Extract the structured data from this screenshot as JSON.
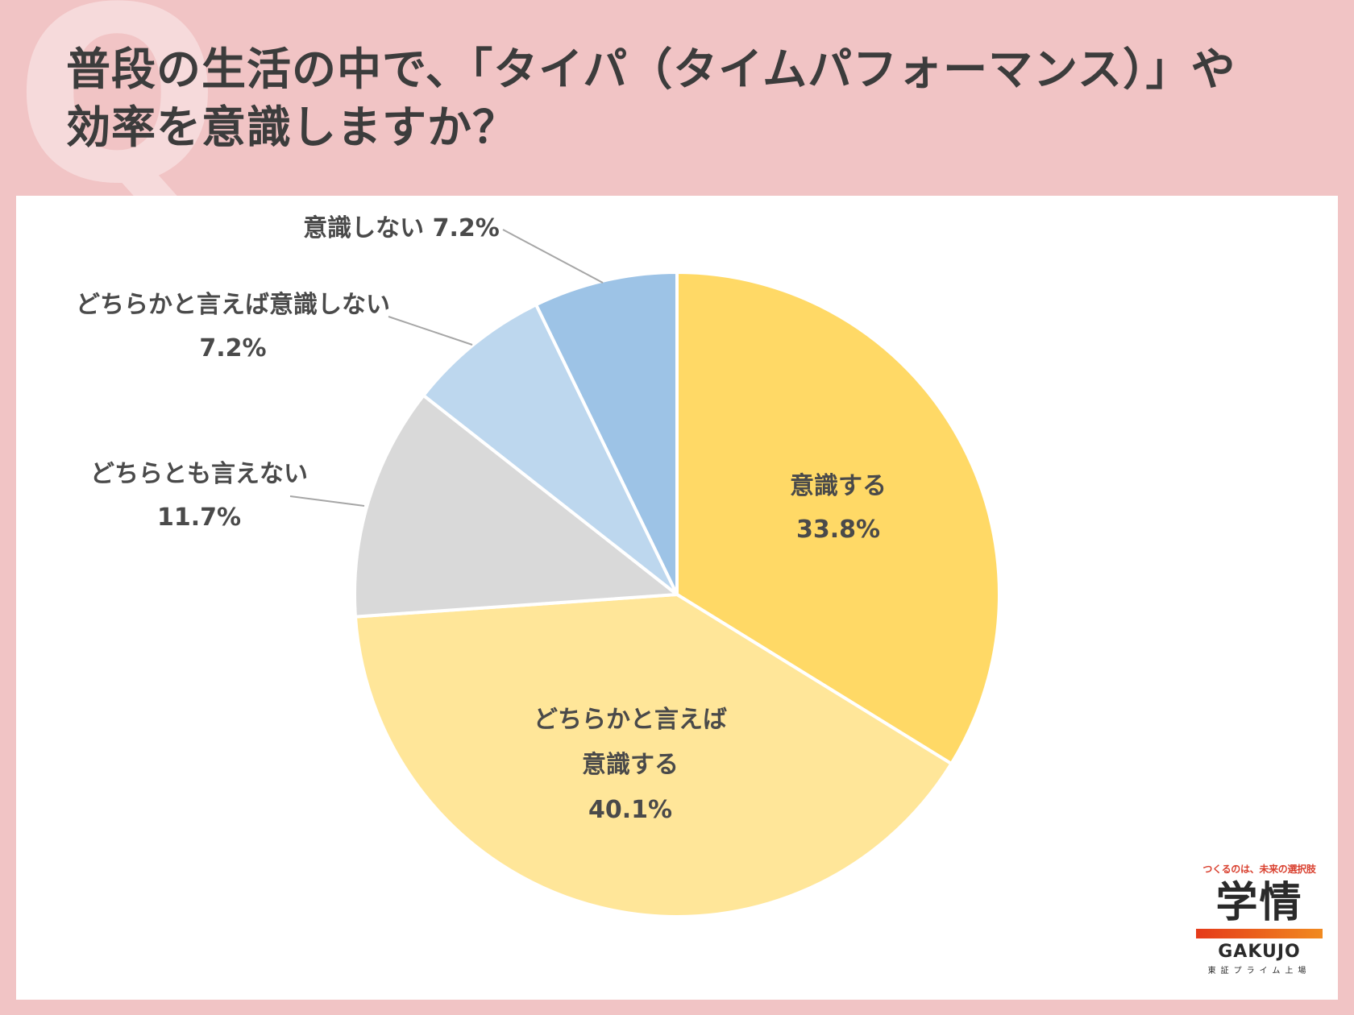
{
  "title_lines": [
    "普段の生活の中で、「タイパ（タイムパフォーマンス）」や",
    "効率を意識しますか？"
  ],
  "bg_letter": "Q",
  "chart_data": {
    "type": "pie",
    "start_angle_deg": 0,
    "direction": "clockwise",
    "slices": [
      {
        "label_lines": [
          "意識する"
        ],
        "value": 33.8,
        "value_label": "33.8%",
        "color": "#ffd966",
        "label_position": "inside"
      },
      {
        "label_lines": [
          "どちらかと言えば",
          "意識する"
        ],
        "value": 40.1,
        "value_label": "40.1%",
        "color": "#ffe699",
        "label_position": "inside"
      },
      {
        "label_lines": [
          "どちらとも言えない"
        ],
        "value": 11.7,
        "value_label": "11.7%",
        "color": "#d9d9d9",
        "label_position": "outside"
      },
      {
        "label_lines": [
          "どちらかと言えば意識しない"
        ],
        "value": 7.2,
        "value_label": "7.2%",
        "color": "#bdd7ee",
        "label_position": "outside"
      },
      {
        "label_lines": [
          "意識しない"
        ],
        "value": 7.2,
        "value_label": "7.2%",
        "color": "#9dc3e6",
        "label_position": "outside-inline"
      }
    ]
  },
  "logo": {
    "tagline": "つくるのは、未来の選択肢",
    "kanji": "学情",
    "english": "GAKUJO",
    "subtitle": "東証プライム上場"
  }
}
